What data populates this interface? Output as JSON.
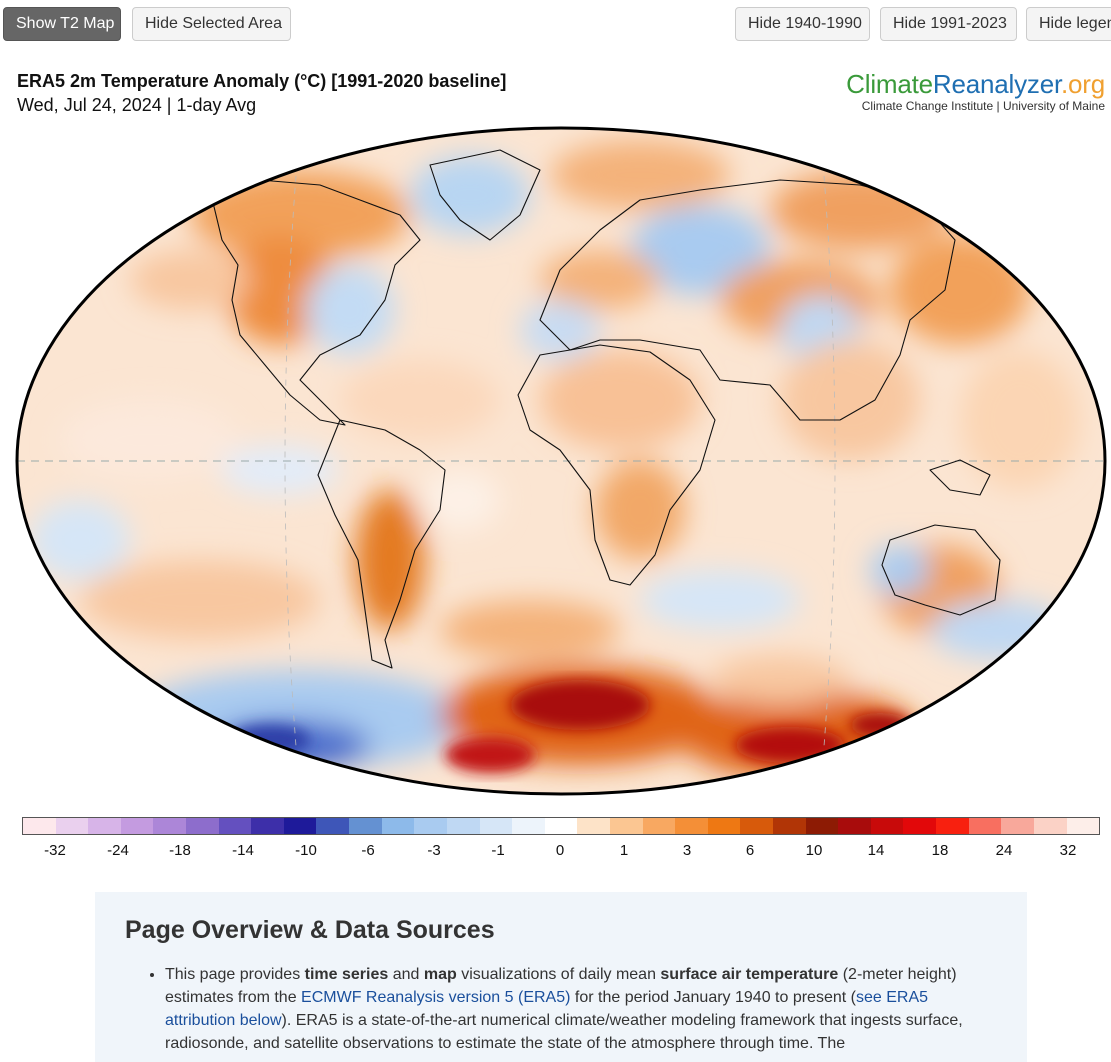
{
  "toolbar": {
    "show_t2": "Show T2 Map",
    "hide_selected": "Hide Selected Area",
    "hide_1940": "Hide 1940-1990",
    "hide_1991": "Hide 1991-2023",
    "hide_legend": "Hide legend"
  },
  "header": {
    "title": "ERA5 2m Temperature Anomaly (°C) [1991-2020 baseline]",
    "subtitle": "Wed, Jul 24, 2024 | 1-day Avg"
  },
  "logo": {
    "part1": "Climate",
    "part2": "Reanalyzer",
    "part3": ".org",
    "tagline": "Climate Change Institute | University of Maine"
  },
  "colorbar": {
    "colors": [
      "#fde8ec",
      "#ead0ee",
      "#d7b4e8",
      "#c49be0",
      "#ac86d8",
      "#8d6dcc",
      "#6450bf",
      "#3d2fa9",
      "#1e1a9a",
      "#3e56b8",
      "#6491d2",
      "#8dbaea",
      "#a9cbf0",
      "#bfd8f3",
      "#d6e6f7",
      "#edf4fb",
      "#ffffff",
      "#fde3c8",
      "#fbc692",
      "#f8a861",
      "#f48f37",
      "#ee7813",
      "#d75a0b",
      "#b13506",
      "#8d1b04",
      "#a80c0c",
      "#c80a0a",
      "#e2080a",
      "#f8200f",
      "#f86f60",
      "#f8a89b",
      "#fbd2c6",
      "#fdeee9"
    ],
    "ticks": [
      "-32",
      "-24",
      "-18",
      "-14",
      "-10",
      "-6",
      "-3",
      "-1",
      "0",
      "1",
      "3",
      "6",
      "10",
      "14",
      "18",
      "24",
      "32"
    ]
  },
  "overview": {
    "heading": "Page Overview & Data Sources",
    "p1": "This page provides ",
    "b1": "time series",
    "p2": " and ",
    "b2": "map",
    "p3": " visualizations of daily mean ",
    "b3": "surface air temperature",
    "p4": " (2-meter height) estimates from the ",
    "link1": "ECMWF Reanalysis version 5 (ERA5)",
    "p5": " for the period January 1940 to present (",
    "link2": "see ERA5 attribution below",
    "p6": "). ERA5 is a state-of-the-art numerical climate/weather modeling framework that ingests surface, radiosonde, and satellite observations to estimate the state of the atmosphere through time. The"
  }
}
